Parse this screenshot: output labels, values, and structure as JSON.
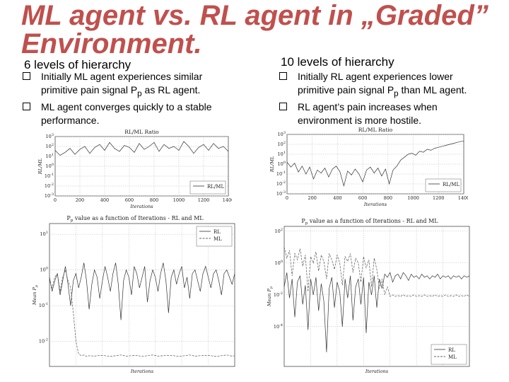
{
  "slide": {
    "title_line1": "ML agent vs. RL agent in „Graded”",
    "title_line2": "Environment.",
    "title_color": "#c0504d"
  },
  "left": {
    "heading": "6 levels of hierarchy",
    "bullets": [
      [
        "Initially ML agent experiences similar",
        "primitive pain signal P",
        "p",
        " as RL agent."
      ],
      [
        "ML agent converges quickly to a stable",
        "performance."
      ]
    ]
  },
  "right": {
    "heading": "10 levels of hierarchy",
    "bullets": [
      [
        "Initially RL agent experiences lower",
        "primitive pain signal P",
        "p",
        " than ML agent."
      ],
      [
        "RL agent’s pain increases when",
        "environment is more hostile."
      ]
    ]
  },
  "chart_data": [
    {
      "id": "ratio-6",
      "type": "line",
      "title": "RL/ML Ratio",
      "xlabel": "Iterations",
      "ylabel": "RL/ML",
      "xlim": [
        0,
        1400
      ],
      "ylim_exp": [
        -3,
        3
      ],
      "xticks": [
        "0",
        "200",
        "400",
        "600",
        "800",
        "1000",
        "1200",
        "1400"
      ],
      "yticks": [
        -3,
        -2,
        -1,
        0,
        1,
        2,
        3
      ],
      "legend": "upper-right-bottom",
      "grid": true,
      "series": [
        {
          "name": "RL/ML",
          "x": [
            0,
            40,
            80,
            120,
            160,
            200,
            240,
            280,
            320,
            360,
            400,
            440,
            480,
            520,
            560,
            600,
            640,
            680,
            720,
            760,
            800,
            840,
            880,
            920,
            960,
            1000,
            1040,
            1080,
            1120,
            1160,
            1200,
            1240,
            1280,
            1320,
            1360,
            1400
          ],
          "log10_y": [
            1.6,
            1.1,
            1.4,
            1.8,
            1.2,
            1.7,
            2.0,
            1.3,
            1.9,
            2.2,
            1.6,
            2.4,
            1.8,
            1.5,
            2.1,
            1.9,
            1.4,
            2.3,
            1.7,
            2.0,
            2.4,
            1.5,
            2.2,
            1.8,
            2.0,
            1.6,
            2.5,
            2.0,
            1.3,
            1.9,
            2.2,
            1.6,
            2.3,
            1.8,
            2.0,
            1.5
          ]
        }
      ]
    },
    {
      "id": "pain-6",
      "type": "line",
      "title": "P",
      "title_sub": "p",
      "title_rest": " value as a function of Iterations - RL and ML",
      "xlabel": "Iterations",
      "ylabel": "Mean P",
      "ylabel_sub": "p",
      "xlim": [
        0,
        1400
      ],
      "ylim_exp": [
        -2.7,
        1.3
      ],
      "yticks": [
        -2,
        -1,
        0,
        1
      ],
      "legend": "upper-right",
      "grid": true,
      "series": [
        {
          "name": "RL",
          "style": "solid",
          "x": [
            0,
            20,
            40,
            60,
            80,
            100,
            120,
            140,
            160,
            180,
            200,
            220,
            240,
            260,
            280,
            300,
            320,
            340,
            360,
            380,
            400,
            420,
            440,
            460,
            480,
            500,
            520,
            540,
            560,
            580,
            600,
            620,
            640,
            660,
            680,
            700,
            720,
            740,
            760,
            780,
            800,
            820,
            840,
            860,
            880,
            900,
            920,
            940,
            960,
            980,
            1000,
            1020,
            1040,
            1060,
            1080,
            1100,
            1120,
            1140,
            1160,
            1180,
            1200,
            1220,
            1240,
            1260,
            1280,
            1300,
            1320,
            1340,
            1360,
            1380,
            1400
          ],
          "log10_y": [
            -0.2,
            -0.6,
            -0.3,
            -0.1,
            -0.7,
            -0.3,
            0.1,
            -0.4,
            -1.0,
            -0.3,
            -0.1,
            -0.5,
            -0.2,
            0.2,
            -0.3,
            -1.1,
            -0.4,
            0.0,
            -0.2,
            -0.8,
            -0.3,
            0.1,
            -0.2,
            -0.6,
            -0.1,
            0.2,
            -0.4,
            -1.4,
            -0.3,
            0.0,
            -0.2,
            -0.7,
            0.1,
            -0.1,
            -0.5,
            -0.2,
            0.1,
            -0.9,
            -0.3,
            0.0,
            -0.2,
            -0.6,
            -0.1,
            0.2,
            -0.3,
            -1.2,
            -0.2,
            0.0,
            -0.4,
            -0.1,
            0.1,
            -0.5,
            -0.2,
            -0.8,
            -0.1,
            0.0,
            -0.3,
            -0.6,
            -0.1,
            0.1,
            -0.2,
            -0.5,
            -0.1,
            0.0,
            -0.3,
            -0.7,
            -0.1,
            0.0,
            -0.2,
            -0.4,
            -0.1
          ]
        },
        {
          "name": "ML",
          "style": "dashed",
          "x": [
            0,
            20,
            40,
            60,
            80,
            100,
            120,
            140,
            160,
            180,
            200,
            220,
            240,
            260,
            280,
            300,
            340,
            380,
            420,
            460,
            500,
            540,
            580,
            620,
            660,
            700,
            740,
            780,
            820,
            860,
            900,
            940,
            980,
            1020,
            1060,
            1100,
            1140,
            1180,
            1220,
            1260,
            1300,
            1340,
            1380,
            1400
          ],
          "log10_y": [
            -0.3,
            -0.5,
            -0.2,
            -0.1,
            -0.6,
            -0.2,
            0.0,
            -0.3,
            -0.5,
            -1.2,
            -2.0,
            -2.35,
            -2.4,
            -2.38,
            -2.42,
            -2.4,
            -2.41,
            -2.39,
            -2.4,
            -2.42,
            -2.4,
            -2.38,
            -2.41,
            -2.4,
            -2.39,
            -2.42,
            -2.4,
            -2.38,
            -2.41,
            -2.4,
            -2.39,
            -2.4,
            -2.42,
            -2.4,
            -2.38,
            -2.41,
            -2.4,
            -2.39,
            -2.4,
            -2.42,
            -2.4,
            -2.38,
            -2.41,
            -2.4
          ]
        }
      ]
    },
    {
      "id": "ratio-10",
      "type": "line",
      "title": "RL/ML Ratio",
      "xlabel": "Iterations",
      "ylabel": "RL/ML",
      "xlim": [
        0,
        1400
      ],
      "ylim_exp": [
        -3,
        3
      ],
      "xticks": [
        "0",
        "200",
        "400",
        "600",
        "800",
        "1000",
        "1200",
        "1400"
      ],
      "yticks": [
        -3,
        -2,
        -1,
        0,
        1,
        2,
        3
      ],
      "legend": "lower-right",
      "grid": true,
      "series": [
        {
          "name": "RL/ML",
          "x": [
            0,
            30,
            60,
            90,
            120,
            150,
            180,
            210,
            240,
            270,
            300,
            330,
            360,
            390,
            420,
            450,
            480,
            510,
            540,
            570,
            600,
            630,
            660,
            690,
            720,
            750,
            780,
            810,
            840,
            870,
            900,
            930,
            960,
            990,
            1020,
            1050,
            1080,
            1110,
            1140,
            1170,
            1200,
            1230,
            1260,
            1290,
            1320,
            1350,
            1380,
            1400
          ],
          "log10_y": [
            0.2,
            -0.3,
            0.1,
            -0.8,
            -0.2,
            -1.0,
            -0.3,
            -1.5,
            -0.6,
            -0.9,
            -0.4,
            -1.3,
            -0.5,
            -0.2,
            -0.8,
            -2.2,
            -0.7,
            -1.1,
            -0.5,
            -1.0,
            -1.8,
            -0.6,
            -0.3,
            -0.9,
            -0.4,
            -1.2,
            -0.5,
            -2.0,
            -0.6,
            -0.2,
            0.4,
            0.7,
            1.0,
            1.1,
            0.9,
            1.3,
            1.2,
            1.5,
            1.4,
            1.6,
            1.7,
            1.8,
            1.9,
            2.0,
            2.1,
            2.2,
            2.3,
            2.3
          ]
        }
      ]
    },
    {
      "id": "pain-10",
      "type": "line",
      "title": "P",
      "title_sub": "p",
      "title_rest": " value as a function of Iterations - RL and ML",
      "xlabel": "Iterations",
      "ylabel": "Mean P",
      "ylabel_sub": "p",
      "xlim": [
        0,
        1400
      ],
      "ylim_exp": [
        -6.5,
        2.3
      ],
      "yticks": [
        -4,
        -2,
        0,
        2
      ],
      "legend": "lower-right",
      "grid": true,
      "series": [
        {
          "name": "RL",
          "style": "solid",
          "x": [
            0,
            20,
            40,
            60,
            80,
            100,
            120,
            140,
            160,
            180,
            200,
            220,
            240,
            260,
            280,
            300,
            320,
            340,
            360,
            380,
            400,
            420,
            440,
            460,
            480,
            500,
            520,
            540,
            560,
            580,
            600,
            620,
            640,
            660,
            680,
            700,
            720,
            740,
            760,
            780,
            800,
            820,
            840,
            860,
            880,
            900,
            920,
            940,
            960,
            980,
            1000,
            1020,
            1040,
            1060,
            1080,
            1100,
            1120,
            1140,
            1160,
            1180,
            1200,
            1220,
            1240,
            1260,
            1280,
            1300,
            1320,
            1340,
            1360,
            1380,
            1400
          ],
          "log10_y": [
            -1.5,
            -0.6,
            -2.2,
            -1.0,
            -3.4,
            -1.2,
            -0.8,
            -2.6,
            -1.4,
            -4.2,
            -1.0,
            -2.0,
            -0.9,
            -3.0,
            -1.3,
            -2.4,
            -5.6,
            -1.6,
            -0.9,
            -2.8,
            -1.2,
            -1.8,
            -4.0,
            -1.0,
            -2.2,
            -0.8,
            -3.6,
            -1.5,
            -1.0,
            -2.6,
            -0.9,
            -4.4,
            -1.2,
            -2.0,
            -0.8,
            -2.8,
            -1.0,
            -1.6,
            -0.7,
            -0.9,
            -0.6,
            -1.2,
            -0.8,
            -0.7,
            -1.0,
            -0.6,
            -0.8,
            -1.1,
            -0.7,
            -0.9,
            -0.8,
            -1.0,
            -0.7,
            -0.9,
            -0.8,
            -1.0,
            -0.8,
            -0.9,
            -0.7,
            -1.0,
            -0.8,
            -0.9,
            -0.8,
            -1.0,
            -0.8,
            -0.9,
            -0.8,
            -1.0,
            -0.8,
            -0.9,
            -0.8
          ]
        },
        {
          "name": "ML",
          "style": "dashed",
          "x": [
            0,
            20,
            40,
            60,
            80,
            100,
            120,
            140,
            160,
            180,
            200,
            220,
            240,
            260,
            280,
            300,
            320,
            340,
            360,
            380,
            400,
            420,
            440,
            460,
            480,
            500,
            520,
            540,
            560,
            580,
            600,
            620,
            640,
            660,
            680,
            700,
            720,
            740,
            760,
            780,
            800,
            820,
            840,
            860,
            880,
            900,
            920,
            940,
            960,
            980,
            1000,
            1020,
            1040,
            1060,
            1080,
            1100,
            1120,
            1140,
            1160,
            1180,
            1200,
            1220,
            1240,
            1260,
            1280,
            1300,
            1320,
            1340,
            1360,
            1380,
            1400
          ],
          "log10_y": [
            1.0,
            0.3,
            0.8,
            -0.8,
            0.6,
            0.2,
            0.9,
            -0.2,
            0.5,
            -1.8,
            0.4,
            0.0,
            0.7,
            -0.5,
            0.5,
            0.1,
            -1.0,
            0.6,
            0.2,
            -0.4,
            0.5,
            0.0,
            -1.4,
            0.4,
            0.1,
            0.6,
            -0.6,
            0.3,
            0.0,
            -1.2,
            0.4,
            -0.3,
            0.2,
            -1.5,
            0.3,
            -0.4,
            -1.6,
            -1.0,
            -2.0,
            -1.5,
            -2.1,
            -2.0,
            -2.1,
            -2.05,
            -2.1,
            -2.0,
            -2.1,
            -2.05,
            -2.1,
            -2.0,
            -2.1,
            -2.05,
            -2.1,
            -2.0,
            -2.1,
            -2.05,
            -2.1,
            -2.0,
            -2.1,
            -2.05,
            -2.1,
            -2.0,
            -2.1,
            -2.05,
            -2.1,
            -2.0,
            -2.1,
            -2.05,
            -2.1,
            -2.0,
            -2.1
          ]
        }
      ]
    }
  ]
}
